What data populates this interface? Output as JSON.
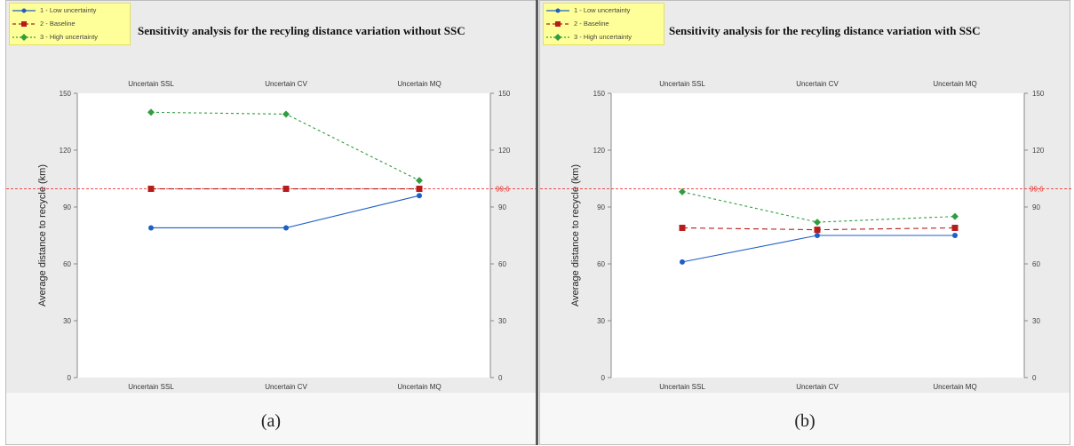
{
  "chart_data": [
    {
      "type": "line",
      "title": "Sensitivity analysis for the recyling distance variation without SSC",
      "ylabel": "Average distance to recycle (km)",
      "categories": [
        "Uncertain SSL",
        "Uncertain CV",
        "Uncertain MQ"
      ],
      "ylim": [
        0,
        150
      ],
      "yticks": [
        "0",
        "30",
        "60",
        "90",
        "120",
        "150"
      ],
      "reference_line": {
        "value": 99.6,
        "label": "99,6",
        "color": "#e53935"
      },
      "series": [
        {
          "name": "1 - Low uncertainty",
          "color": "#1e5fc6",
          "style": "solid",
          "marker": "circle",
          "values": [
            79,
            79,
            96
          ]
        },
        {
          "name": "2 - Baseline",
          "color": "#b71c1c",
          "style": "dashed",
          "marker": "square",
          "values": [
            99.6,
            99.6,
            99.6
          ]
        },
        {
          "name": "3 - High uncertainty",
          "color": "#2e9e3e",
          "style": "dashed",
          "marker": "diamond",
          "values": [
            140,
            139,
            104
          ]
        }
      ],
      "caption": "(a)"
    },
    {
      "type": "line",
      "title": "Sensitivity analysis for the recyling distance variation with SSC",
      "ylabel": "Average distance to recycle (km)",
      "categories": [
        "Uncertain SSL",
        "Uncertain CV",
        "Uncertain MQ"
      ],
      "ylim": [
        0,
        150
      ],
      "yticks": [
        "0",
        "30",
        "60",
        "90",
        "120",
        "150"
      ],
      "reference_line": {
        "value": 99.6,
        "label": "99,6",
        "color": "#e53935"
      },
      "series": [
        {
          "name": "1 - Low uncertainty",
          "color": "#1e5fc6",
          "style": "solid",
          "marker": "circle",
          "values": [
            61,
            75,
            75
          ]
        },
        {
          "name": "2 - Baseline",
          "color": "#b71c1c",
          "style": "dashed",
          "marker": "square",
          "values": [
            79,
            78,
            79
          ]
        },
        {
          "name": "3 - High uncertainty",
          "color": "#2e9e3e",
          "style": "dashed",
          "marker": "diamond",
          "values": [
            98,
            82,
            85
          ]
        }
      ],
      "caption": "(b)"
    }
  ]
}
